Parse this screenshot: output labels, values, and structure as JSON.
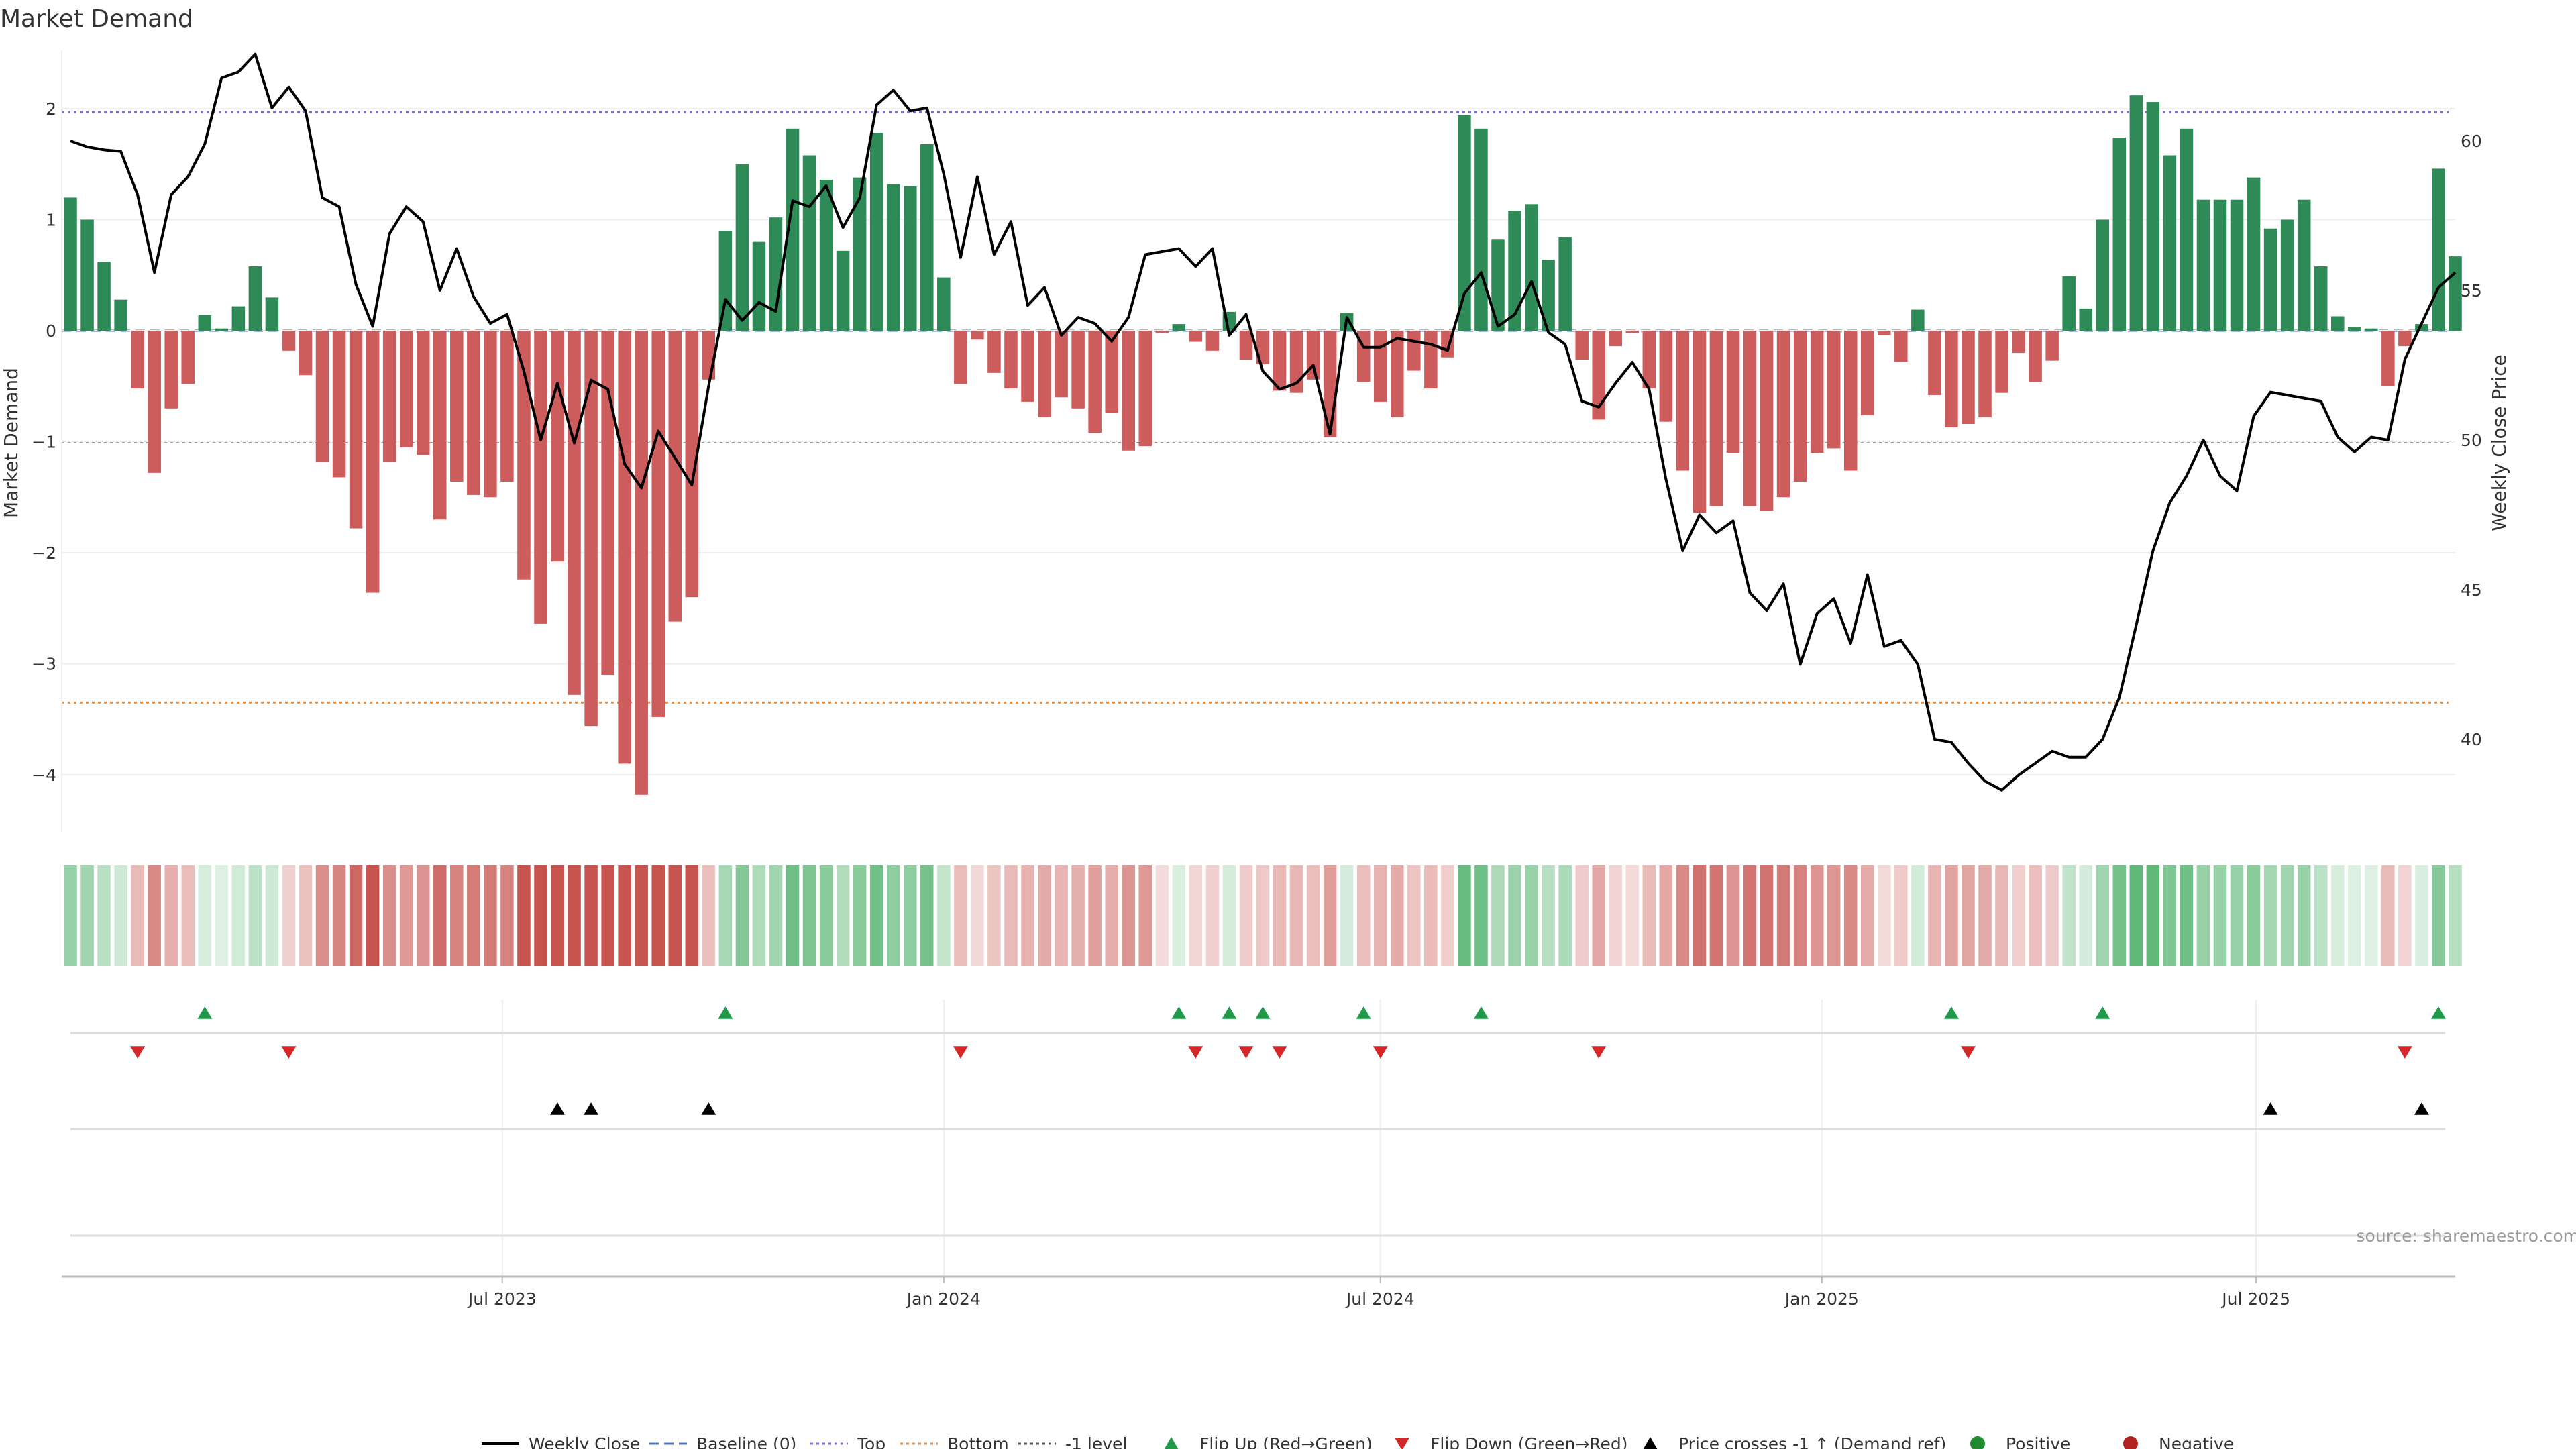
{
  "chart_data": {
    "type": "bar",
    "title": "Market Demand",
    "ylabel": "Market Demand",
    "y2label": "Weekly Close Price",
    "ylim": [
      -4.5,
      2.5
    ],
    "y2lim": [
      37,
      63
    ],
    "yticks": [
      2,
      1,
      0,
      -1,
      -2,
      -3,
      -4
    ],
    "ytick_labels": [
      "2",
      "1",
      "0",
      "−1",
      "−2",
      "−3",
      "−4"
    ],
    "y2ticks": [
      60,
      55,
      50,
      45,
      40
    ],
    "start_date": "2023-01-02",
    "date_ticks": [
      {
        "date": "2023-07-01",
        "label": "Jul 2023"
      },
      {
        "date": "2024-01-01",
        "label": "Jan 2024"
      },
      {
        "date": "2024-07-01",
        "label": "Jul 2024"
      },
      {
        "date": "2025-01-01",
        "label": "Jan 2025"
      },
      {
        "date": "2025-07-01",
        "label": "Jul 2025"
      }
    ],
    "reference_lines": {
      "baseline": 0,
      "top": 1.97,
      "bottom": -3.35,
      "minus1": -1
    },
    "colors": {
      "positive": "#2e8b57",
      "negative": "#cd5c5c",
      "price": "#000000",
      "baseline": "#4a78b5",
      "top": "#7b6ee0",
      "bottom": "#e09050",
      "minus1": "#555555",
      "flip_up": "#1e9a48",
      "flip_down": "#d62728",
      "cross": "#000000",
      "positive_dot": "#1f8a2e",
      "negative_dot": "#b22222"
    },
    "demand": [
      1.2,
      1.0,
      0.62,
      0.28,
      -0.52,
      -1.28,
      -0.7,
      -0.48,
      0.14,
      0.02,
      0.22,
      0.58,
      0.3,
      -0.18,
      -0.4,
      -1.18,
      -1.32,
      -1.78,
      -2.36,
      -1.18,
      -1.05,
      -1.12,
      -1.7,
      -1.36,
      -1.48,
      -1.5,
      -1.36,
      -2.24,
      -2.64,
      -2.08,
      -3.28,
      -3.56,
      -3.1,
      -3.9,
      -4.18,
      -3.48,
      -2.62,
      -2.4,
      -0.44,
      0.9,
      1.5,
      0.8,
      1.02,
      1.82,
      1.58,
      1.36,
      0.72,
      1.38,
      1.78,
      1.32,
      1.3,
      1.68,
      0.48,
      -0.48,
      -0.08,
      -0.38,
      -0.52,
      -0.64,
      -0.78,
      -0.6,
      -0.7,
      -0.92,
      -0.74,
      -1.08,
      -1.04,
      -0.02,
      0.06,
      -0.1,
      -0.18,
      0.17,
      -0.26,
      -0.3,
      -0.54,
      -0.56,
      -0.44,
      -0.96,
      0.16,
      -0.46,
      -0.64,
      -0.78,
      -0.36,
      -0.52,
      -0.24,
      1.94,
      1.82,
      0.82,
      1.08,
      1.14,
      0.64,
      0.84,
      -0.26,
      -0.8,
      -0.14,
      -0.02,
      -0.52,
      -0.82,
      -1.26,
      -1.64,
      -1.58,
      -1.1,
      -1.58,
      -1.62,
      -1.5,
      -1.36,
      -1.1,
      -1.06,
      -1.26,
      -0.76,
      -0.04,
      -0.28,
      0.19,
      -0.58,
      -0.87,
      -0.84,
      -0.78,
      -0.56,
      -0.2,
      -0.46,
      -0.27,
      0.49,
      0.2,
      1.0,
      1.74,
      2.12,
      2.06,
      1.58,
      1.82,
      1.18,
      1.18,
      1.18,
      1.38,
      0.92,
      1.0,
      1.18,
      0.58,
      0.13,
      0.03,
      0.02,
      -0.5,
      -0.14,
      0.06,
      1.46,
      0.67
    ],
    "price": [
      60.0,
      59.8,
      59.7,
      59.65,
      58.2,
      55.6,
      58.2,
      58.8,
      59.9,
      62.1,
      62.3,
      62.9,
      61.1,
      61.8,
      61.0,
      58.1,
      57.8,
      55.2,
      53.8,
      56.9,
      57.8,
      57.3,
      55.0,
      56.4,
      54.8,
      53.9,
      54.2,
      52.3,
      50.0,
      51.9,
      49.9,
      52.0,
      51.7,
      49.2,
      48.4,
      50.3,
      49.4,
      48.5,
      51.8,
      54.7,
      54.0,
      54.6,
      54.3,
      58.0,
      57.8,
      58.5,
      57.1,
      58.1,
      61.2,
      61.7,
      61.0,
      61.1,
      58.9,
      56.1,
      58.8,
      56.2,
      57.3,
      54.5,
      55.1,
      53.5,
      54.1,
      53.9,
      53.3,
      54.1,
      56.2,
      56.3,
      56.4,
      55.8,
      56.4,
      53.5,
      54.2,
      52.3,
      51.7,
      51.9,
      52.5,
      50.2,
      54.1,
      53.1,
      53.1,
      53.4,
      53.3,
      53.2,
      53.0,
      54.9,
      55.6,
      53.8,
      54.2,
      55.3,
      53.6,
      53.2,
      51.3,
      51.1,
      51.9,
      52.6,
      51.7,
      48.7,
      46.3,
      47.5,
      46.9,
      47.3,
      44.9,
      44.3,
      45.2,
      42.5,
      44.2,
      44.7,
      43.2,
      45.5,
      43.1,
      43.3,
      42.5,
      40.0,
      39.9,
      39.2,
      38.6,
      38.3,
      38.8,
      39.2,
      39.6,
      39.4,
      39.4,
      40.0,
      41.4,
      43.8,
      46.3,
      47.9,
      48.8,
      50.0,
      48.8,
      48.3,
      50.8,
      51.6,
      51.5,
      51.4,
      51.3,
      50.1,
      49.6,
      50.1,
      50.0,
      52.7,
      53.9,
      55.1,
      55.6
    ],
    "flip_up": [
      8,
      39,
      66,
      69,
      71,
      77,
      84,
      112,
      121,
      141
    ],
    "flip_down": [
      4,
      13,
      53,
      67,
      70,
      72,
      78,
      91,
      113,
      139
    ],
    "cross_up": [
      29,
      31,
      38,
      131,
      140
    ],
    "legend": [
      {
        "key": "price",
        "label": "Weekly Close"
      },
      {
        "key": "baseline",
        "label": "Baseline (0)"
      },
      {
        "key": "top",
        "label": "Top"
      },
      {
        "key": "bottom",
        "label": "Bottom"
      },
      {
        "key": "minus1",
        "label": "-1 level"
      },
      {
        "key": "flip_up",
        "label": "Flip Up (Red→Green)"
      },
      {
        "key": "flip_down",
        "label": "Flip Down (Green→Red)"
      },
      {
        "key": "cross",
        "label": "Price crosses -1 ↑ (Demand ref)"
      },
      {
        "key": "positive_dot",
        "label": "Positive"
      },
      {
        "key": "negative_dot",
        "label": "Negative"
      }
    ],
    "source": "source: sharemaestro.com"
  }
}
